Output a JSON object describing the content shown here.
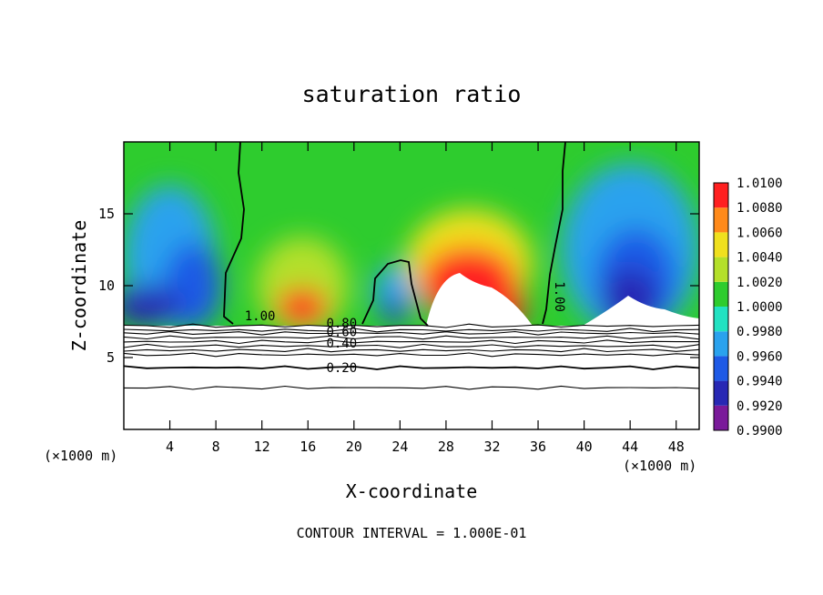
{
  "chart_data": {
    "type": "heatmap",
    "title": "saturation ratio",
    "xlabel": "X-coordinate",
    "ylabel": "Z-coordinate",
    "x_unit": "(×1000 m)",
    "footer": "CONTOUR INTERVAL = 1.000E-01",
    "xlim": [
      0,
      50
    ],
    "ylim": [
      0,
      20
    ],
    "x_ticks": [
      4,
      8,
      12,
      16,
      20,
      24,
      28,
      32,
      36,
      40,
      44,
      48
    ],
    "y_ticks": [
      5,
      10,
      15
    ],
    "colorbar": {
      "levels": [
        "0.9900",
        "0.9920",
        "0.9940",
        "0.9960",
        "0.9980",
        "1.0000",
        "1.0020",
        "1.0040",
        "1.0060",
        "1.0080",
        "1.0100"
      ],
      "colors": [
        "#7a1a9a",
        "#2828b4",
        "#1e5ae6",
        "#2aa2ee",
        "#22e2c2",
        "#2ecc2e",
        "#b4e02a",
        "#f0e01e",
        "#ff8a1a",
        "#ff2020",
        "#f28a8a"
      ]
    },
    "contour_labels": [
      {
        "text": "1.00",
        "x": 10.5,
        "y": 7.6
      },
      {
        "text": "1.00",
        "x": 37.5,
        "y": 10.3
      },
      {
        "text": "0.80",
        "x": 17.6,
        "y": 7.1
      },
      {
        "text": "0.60",
        "x": 17.6,
        "y": 6.5
      },
      {
        "text": "0.40",
        "x": 17.6,
        "y": 5.7
      },
      {
        "text": "0.20",
        "x": 17.6,
        "y": 4.0
      }
    ],
    "contour_lines_z": [
      7.2,
      6.9,
      6.7,
      6.4,
      6.1,
      5.8,
      5.5,
      5.2,
      4.3,
      2.9
    ],
    "ridges": [
      {
        "center": 15.5,
        "peak": 1.008,
        "top": 13.2
      },
      {
        "center": 30.0,
        "peak": 1.009,
        "top": 14.3
      },
      {
        "center": 23.5,
        "peak": 0.9925,
        "top": 11.0
      },
      {
        "center": 44.0,
        "peak": 0.9905,
        "top": 15.5
      }
    ]
  }
}
